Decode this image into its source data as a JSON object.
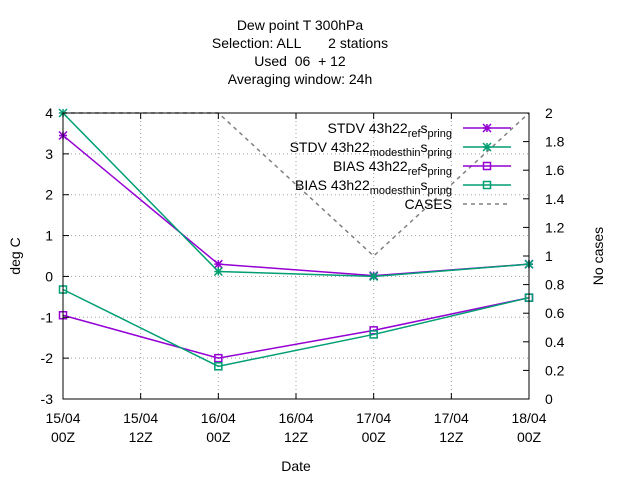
{
  "chart_data": {
    "type": "line",
    "title_lines": [
      "Dew point T 300hPa",
      "Selection: ALL       2 stations",
      "Used  06  + 12",
      "Averaging window: 24h"
    ],
    "xlabel": "Date",
    "ylabel": "deg C",
    "y2label": "No cases",
    "x_ticks": [
      {
        "line1": "15/04",
        "line2": "00Z"
      },
      {
        "line1": "15/04",
        "line2": "12Z"
      },
      {
        "line1": "16/04",
        "line2": "00Z"
      },
      {
        "line1": "16/04",
        "line2": "12Z"
      },
      {
        "line1": "17/04",
        "line2": "00Z"
      },
      {
        "line1": "17/04",
        "line2": "12Z"
      },
      {
        "line1": "18/04",
        "line2": "00Z"
      }
    ],
    "xlim": [
      0,
      72
    ],
    "ylim": [
      -3,
      4
    ],
    "y_ticks": [
      -3,
      -2,
      -1,
      0,
      1,
      2,
      3,
      4
    ],
    "y2lim": [
      0,
      2
    ],
    "y2_ticks": [
      "0",
      "0.2",
      "0.4",
      "0.6",
      "0.8",
      "1",
      "1.2",
      "1.4",
      "1.6",
      "1.8",
      "2"
    ],
    "grid": true,
    "legend_position": "top-right",
    "series": [
      {
        "name": "STDV 43h22_ref_spring",
        "legend_parts": [
          "STDV 43h22",
          "ref",
          "s",
          "pring"
        ],
        "color": "#9400d3",
        "marker": "star",
        "axis": "y",
        "x": [
          0,
          24,
          48,
          72
        ],
        "y": [
          3.45,
          0.3,
          0.02,
          0.3
        ]
      },
      {
        "name": "STDV 43h22_modesthin_spring",
        "legend_parts": [
          "STDV 43h22",
          "modesthin",
          "s",
          "pring"
        ],
        "color": "#009e73",
        "marker": "star",
        "axis": "y",
        "x": [
          0,
          24,
          48,
          72
        ],
        "y": [
          4.0,
          0.12,
          0.0,
          0.3
        ]
      },
      {
        "name": "BIAS 43h22_ref_spring",
        "legend_parts": [
          "BIAS 43h22",
          "ref",
          "s",
          "pring"
        ],
        "color": "#9400d3",
        "marker": "square",
        "axis": "y",
        "x": [
          0,
          24,
          48,
          72
        ],
        "y": [
          -0.95,
          -2.0,
          -1.32,
          -0.52
        ]
      },
      {
        "name": "BIAS 43h22_modesthin_spring",
        "legend_parts": [
          "BIAS 43h22",
          "modesthin",
          "s",
          "pring"
        ],
        "color": "#009e73",
        "marker": "square",
        "axis": "y",
        "x": [
          0,
          24,
          48,
          72
        ],
        "y": [
          -0.32,
          -2.2,
          -1.42,
          -0.52
        ]
      },
      {
        "name": "CASES",
        "legend_parts": [
          "CASES",
          "",
          "",
          ""
        ],
        "color": "#808080",
        "marker": "none",
        "dashed": true,
        "axis": "y2",
        "x": [
          0,
          24,
          48,
          72
        ],
        "y": [
          2,
          2,
          1,
          2
        ]
      }
    ]
  }
}
